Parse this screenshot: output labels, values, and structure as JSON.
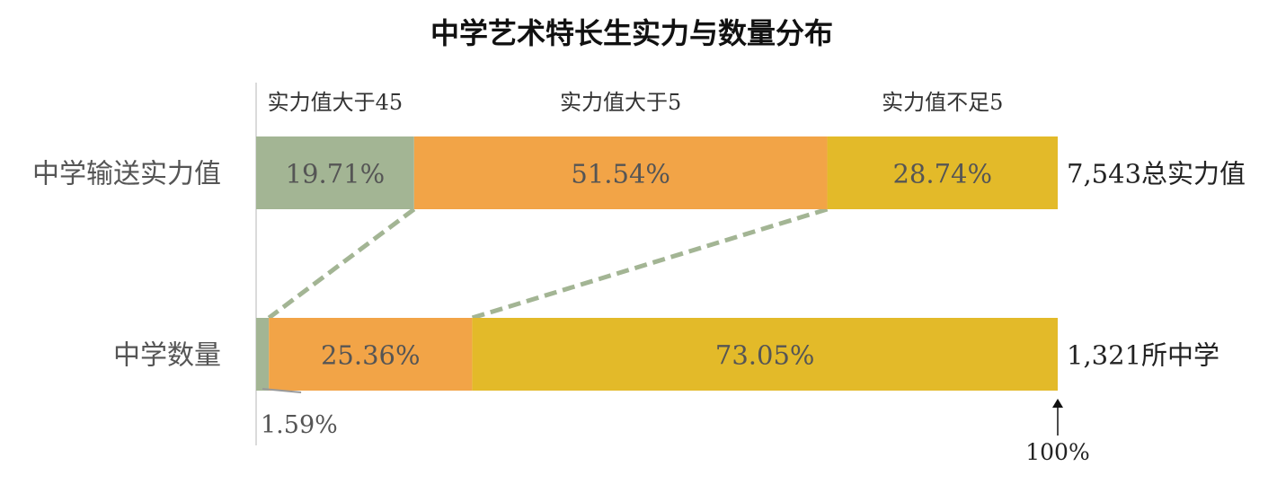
{
  "chart_data": {
    "type": "bar",
    "orientation": "horizontal",
    "stacked": true,
    "normalized_percent": true,
    "title": "中学艺术特长生实力与数量分布",
    "categories": [
      "中学输送实力值",
      "中学数量"
    ],
    "series": [
      {
        "name": "实力值大于45",
        "values": [
          19.71,
          1.59
        ],
        "color": "#a3b594"
      },
      {
        "name": "实力值大于5",
        "values": [
          51.54,
          25.36
        ],
        "color": "#f2a447"
      },
      {
        "name": "实力值不足5",
        "values": [
          28.74,
          73.05
        ],
        "color": "#e3ba29"
      }
    ],
    "data_labels": [
      [
        "19.71%",
        "51.54%",
        "28.74%"
      ],
      [
        "1.59%",
        "25.36%",
        "73.05%"
      ]
    ],
    "totals": [
      "7,543总实力值",
      "1,321所中学"
    ],
    "xlim": [
      0,
      100
    ],
    "end_marker_label": "100%",
    "connector_color": "#a3b594",
    "grid": false,
    "legend": "top, as column headers above the first bar"
  }
}
